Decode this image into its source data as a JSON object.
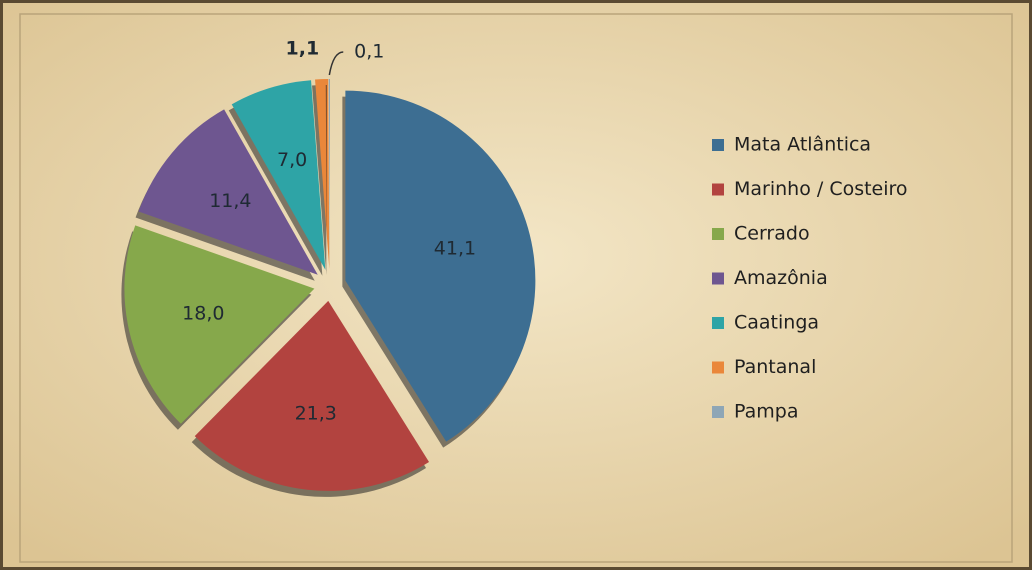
{
  "chart_data": {
    "type": "pie",
    "categories": [
      "Mata Atlântica",
      "Marinho / Costeiro",
      "Cerrado",
      "Amazônia",
      "Caatinga",
      "Pantanal",
      "Pampa"
    ],
    "values": [
      41.1,
      21.3,
      18.0,
      11.4,
      7.0,
      1.1,
      0.1
    ],
    "value_labels": [
      "41,1",
      "21,3",
      "18,0",
      "11,4",
      "7,0",
      "1,1",
      "0,1"
    ],
    "colors": [
      "#3d6e92",
      "#b2433f",
      "#86a84b",
      "#6e5690",
      "#2ea4a6",
      "#ea873a",
      "#8ea6b6"
    ],
    "legend": "right"
  }
}
